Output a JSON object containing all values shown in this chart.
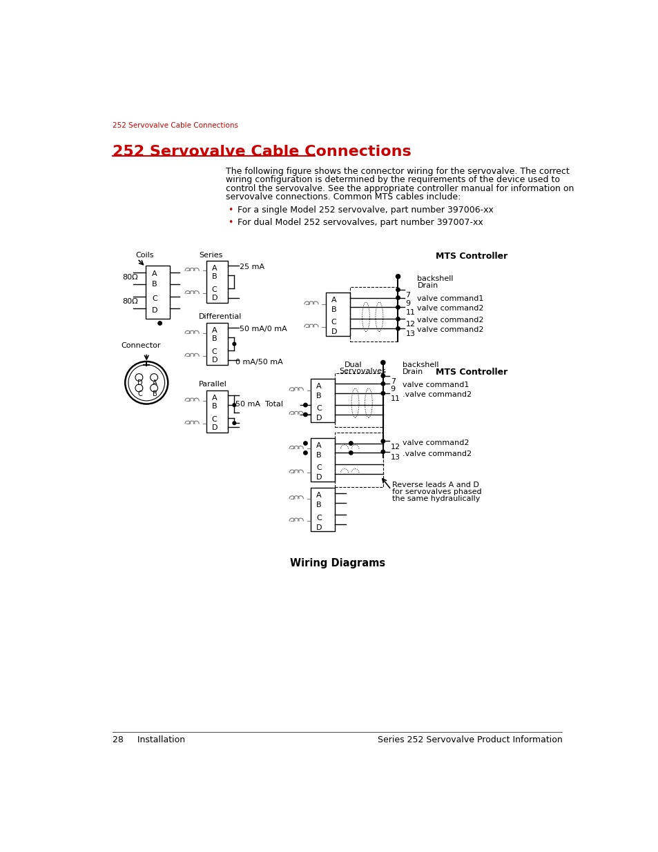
{
  "page_header": "252 Servovalve Cable Connections",
  "section_title": "252 Servovalve Cable Connections",
  "body_lines": [
    "The following figure shows the connector wiring for the servovalve. The correct",
    "wiring configuration is determined by the requirements of the device used to",
    "control the servovalve. See the appropriate controller manual for information on",
    "servovalve connections. Common MTS cables include:"
  ],
  "bullet1": "For a single Model 252 servovalve, part number 397006-xx",
  "bullet2": "For dual Model 252 servovalves, part number 397007-xx",
  "diagram_caption": "Wiring Diagrams",
  "footer_left": "28     Installation",
  "footer_right": "Series 252 Servovalve Product Information",
  "header_color": "#cc0000",
  "title_color": "#cc0000",
  "text_color": "#000000",
  "bg_color": "#ffffff"
}
